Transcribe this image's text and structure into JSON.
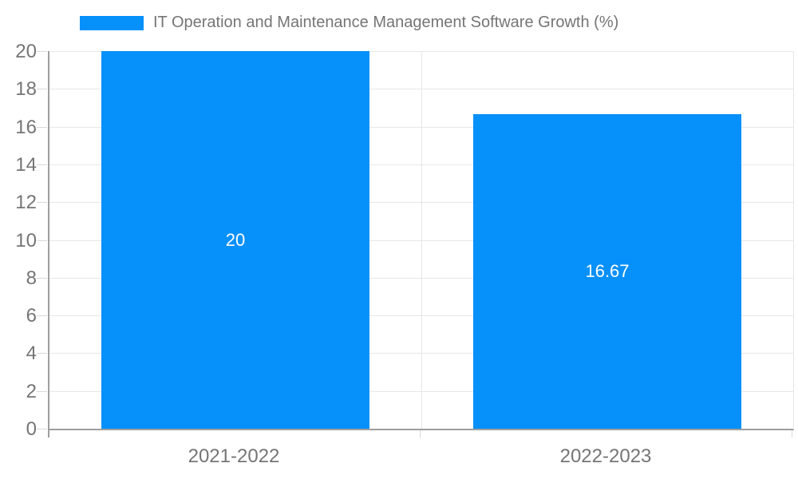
{
  "legend": {
    "label": "IT Operation and Maintenance Management Software Growth (%)"
  },
  "chart_data": {
    "type": "bar",
    "title": "IT Operation and Maintenance Management Software Growth (%)",
    "categories": [
      "2021-2022",
      "2022-2023"
    ],
    "series": [
      {
        "name": "IT Operation and Maintenance Management Software Growth (%)",
        "values": [
          20,
          16.67
        ],
        "value_labels": [
          "20",
          "16.67"
        ]
      }
    ],
    "xlabel": "",
    "ylabel": "",
    "ylim": [
      0,
      20
    ],
    "ytick_step": 2,
    "yticks": [
      0,
      2,
      4,
      6,
      8,
      10,
      12,
      14,
      16,
      18,
      20
    ],
    "grid": true,
    "legend_position": "top",
    "bar_label_position": "center"
  },
  "colors": {
    "bar": "#0690fa",
    "bar_label": "#ffffff",
    "text": "#757575",
    "gridline": "#e7e7e7",
    "axis": "#9e9e9e",
    "tick": "#d9d9d9",
    "background": "#ffffff"
  }
}
